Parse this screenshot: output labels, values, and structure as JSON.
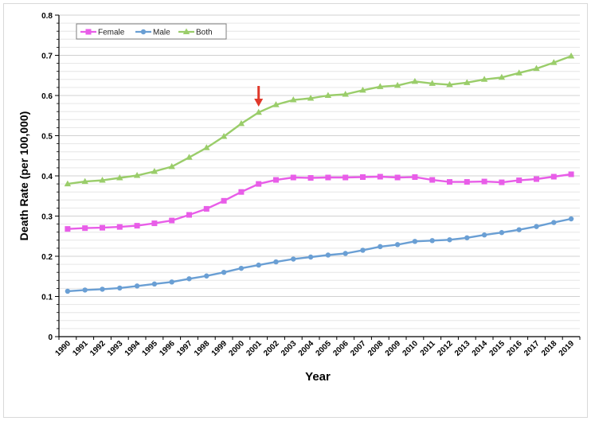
{
  "chart_data": {
    "type": "line",
    "title": "",
    "xlabel": "Year",
    "ylabel": "Death Rate (per 100,000)",
    "ylim": [
      0,
      0.8
    ],
    "yticks": [
      0,
      0.1,
      0.2,
      0.3,
      0.4,
      0.5,
      0.6,
      0.7,
      0.8
    ],
    "ytick_labels": [
      "0",
      "0.1",
      "0.2",
      "0.3",
      "0.4",
      "0.5",
      "0.6",
      "0.7",
      "0.8"
    ],
    "grid": "horizontal",
    "legend_position": "top-left",
    "x": [
      "1990",
      "1991",
      "1992",
      "1993",
      "1994",
      "1995",
      "1996",
      "1997",
      "1998",
      "1999",
      "2000",
      "2001",
      "2002",
      "2003",
      "2004",
      "2005",
      "2006",
      "2007",
      "2008",
      "2009",
      "2010",
      "2011",
      "2012",
      "2013",
      "2014",
      "2015",
      "2016",
      "2017",
      "2018",
      "2019"
    ],
    "series": [
      {
        "name": "Female",
        "color": "#e85de8",
        "marker": "square",
        "values": [
          0.268,
          0.27,
          0.271,
          0.273,
          0.276,
          0.282,
          0.289,
          0.303,
          0.318,
          0.338,
          0.36,
          0.38,
          0.39,
          0.396,
          0.395,
          0.396,
          0.396,
          0.397,
          0.398,
          0.396,
          0.397,
          0.39,
          0.385,
          0.385,
          0.386,
          0.384,
          0.389,
          0.392,
          0.398,
          0.404
        ]
      },
      {
        "name": "Male",
        "color": "#6a9fd4",
        "marker": "circle",
        "values": [
          0.113,
          0.116,
          0.118,
          0.121,
          0.126,
          0.131,
          0.136,
          0.144,
          0.151,
          0.16,
          0.17,
          0.178,
          0.186,
          0.193,
          0.198,
          0.203,
          0.207,
          0.215,
          0.224,
          0.229,
          0.237,
          0.239,
          0.241,
          0.246,
          0.253,
          0.259,
          0.266,
          0.274,
          0.284,
          0.293
        ]
      },
      {
        "name": "Both",
        "color": "#9acd6a",
        "marker": "triangle",
        "values": [
          0.38,
          0.386,
          0.389,
          0.395,
          0.401,
          0.411,
          0.423,
          0.446,
          0.47,
          0.498,
          0.53,
          0.558,
          0.577,
          0.589,
          0.593,
          0.6,
          0.603,
          0.613,
          0.622,
          0.625,
          0.635,
          0.63,
          0.627,
          0.632,
          0.64,
          0.645,
          0.656,
          0.667,
          0.682,
          0.698
        ]
      }
    ],
    "annotations": [
      {
        "type": "arrow",
        "x": "2001",
        "color": "#e0392b"
      }
    ]
  }
}
